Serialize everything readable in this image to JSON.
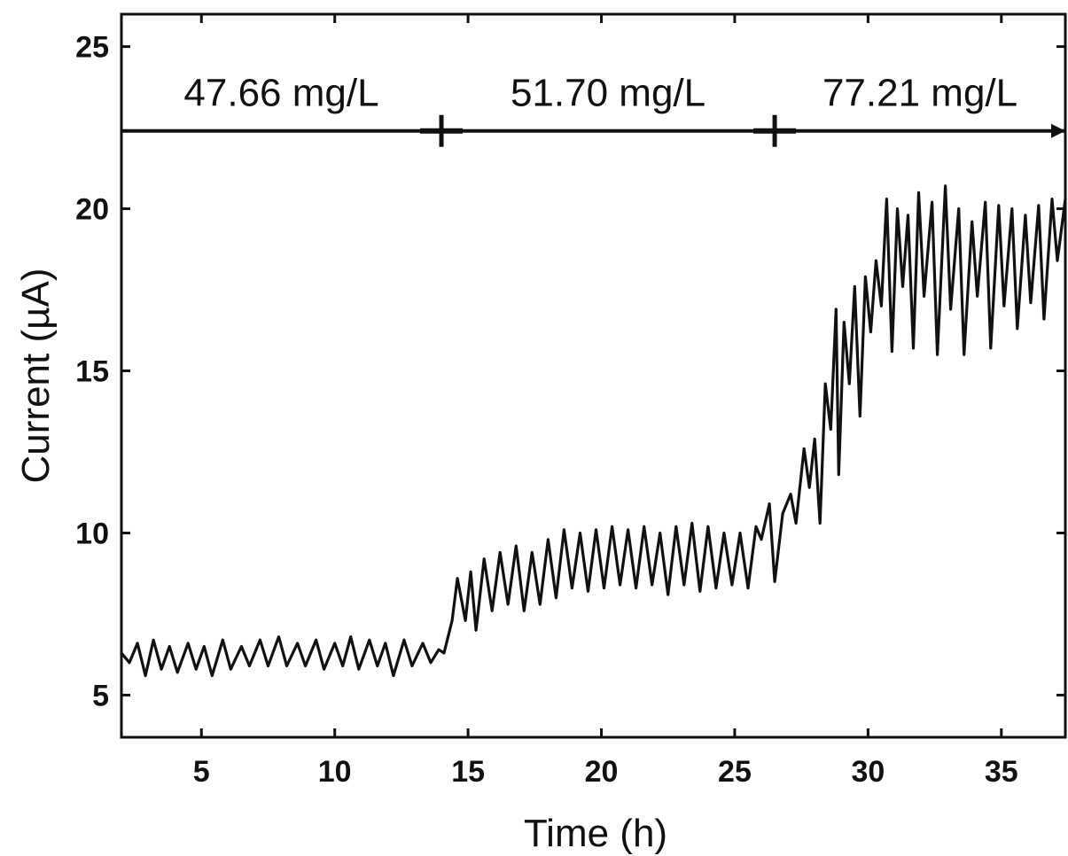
{
  "chart_data": {
    "type": "line",
    "title": "",
    "xlabel": "Time (h)",
    "ylabel": "Current (µA)",
    "xlim": [
      2,
      37.4
    ],
    "ylim": [
      3.7,
      26
    ],
    "xticks": [
      5,
      10,
      15,
      20,
      25,
      30,
      35
    ],
    "yticks": [
      5,
      10,
      15,
      20,
      25
    ],
    "grid": false,
    "legend": "none",
    "line_color": "#111111",
    "concentration_segments": [
      {
        "label": "47.66 mg/L",
        "x_start": 2,
        "x_end": 14.0
      },
      {
        "label": "51.70 mg/L",
        "x_start": 14.0,
        "x_end": 26.5
      },
      {
        "label": "77.21 mg/L",
        "x_start": 26.5,
        "x_end": 37.4
      }
    ],
    "segment_line_y": 22.4,
    "series": [
      {
        "points": [
          [
            2.0,
            6.3
          ],
          [
            2.3,
            6.0
          ],
          [
            2.6,
            6.6
          ],
          [
            2.9,
            5.6
          ],
          [
            3.2,
            6.7
          ],
          [
            3.5,
            5.8
          ],
          [
            3.8,
            6.5
          ],
          [
            4.1,
            5.7
          ],
          [
            4.5,
            6.6
          ],
          [
            4.8,
            5.8
          ],
          [
            5.1,
            6.5
          ],
          [
            5.4,
            5.6
          ],
          [
            5.8,
            6.7
          ],
          [
            6.1,
            5.8
          ],
          [
            6.5,
            6.5
          ],
          [
            6.8,
            5.9
          ],
          [
            7.2,
            6.7
          ],
          [
            7.5,
            5.9
          ],
          [
            7.9,
            6.8
          ],
          [
            8.2,
            5.9
          ],
          [
            8.6,
            6.6
          ],
          [
            8.9,
            5.9
          ],
          [
            9.3,
            6.7
          ],
          [
            9.6,
            5.8
          ],
          [
            10.0,
            6.6
          ],
          [
            10.3,
            5.9
          ],
          [
            10.6,
            6.8
          ],
          [
            10.9,
            5.8
          ],
          [
            11.3,
            6.7
          ],
          [
            11.6,
            5.9
          ],
          [
            11.9,
            6.6
          ],
          [
            12.2,
            5.6
          ],
          [
            12.6,
            6.7
          ],
          [
            12.9,
            5.9
          ],
          [
            13.3,
            6.6
          ],
          [
            13.6,
            6.0
          ],
          [
            13.9,
            6.4
          ],
          [
            14.1,
            6.3
          ],
          [
            14.4,
            7.3
          ],
          [
            14.6,
            8.6
          ],
          [
            14.9,
            7.3
          ],
          [
            15.1,
            8.8
          ],
          [
            15.3,
            7.0
          ],
          [
            15.6,
            9.2
          ],
          [
            15.9,
            7.6
          ],
          [
            16.2,
            9.4
          ],
          [
            16.5,
            7.8
          ],
          [
            16.8,
            9.6
          ],
          [
            17.1,
            7.6
          ],
          [
            17.4,
            9.4
          ],
          [
            17.7,
            7.8
          ],
          [
            18.0,
            9.8
          ],
          [
            18.3,
            8.0
          ],
          [
            18.6,
            10.1
          ],
          [
            18.9,
            8.3
          ],
          [
            19.2,
            10.0
          ],
          [
            19.5,
            8.2
          ],
          [
            19.8,
            10.1
          ],
          [
            20.1,
            8.3
          ],
          [
            20.4,
            10.2
          ],
          [
            20.7,
            8.4
          ],
          [
            21.0,
            10.1
          ],
          [
            21.3,
            8.3
          ],
          [
            21.6,
            10.2
          ],
          [
            21.9,
            8.4
          ],
          [
            22.2,
            10.0
          ],
          [
            22.5,
            8.1
          ],
          [
            22.8,
            10.2
          ],
          [
            23.1,
            8.4
          ],
          [
            23.4,
            10.3
          ],
          [
            23.7,
            8.2
          ],
          [
            24.0,
            10.2
          ],
          [
            24.3,
            8.3
          ],
          [
            24.6,
            10.0
          ],
          [
            24.9,
            8.4
          ],
          [
            25.2,
            10.0
          ],
          [
            25.5,
            8.3
          ],
          [
            25.8,
            10.2
          ],
          [
            26.0,
            9.8
          ],
          [
            26.3,
            10.9
          ],
          [
            26.5,
            8.5
          ],
          [
            26.8,
            10.6
          ],
          [
            27.1,
            11.2
          ],
          [
            27.3,
            10.3
          ],
          [
            27.6,
            12.6
          ],
          [
            27.8,
            11.4
          ],
          [
            28.0,
            12.9
          ],
          [
            28.2,
            10.3
          ],
          [
            28.4,
            14.6
          ],
          [
            28.6,
            13.2
          ],
          [
            28.8,
            16.9
          ],
          [
            28.9,
            11.8
          ],
          [
            29.1,
            16.5
          ],
          [
            29.3,
            14.6
          ],
          [
            29.5,
            17.6
          ],
          [
            29.7,
            13.6
          ],
          [
            29.9,
            17.9
          ],
          [
            30.1,
            16.2
          ],
          [
            30.3,
            18.4
          ],
          [
            30.5,
            17.0
          ],
          [
            30.7,
            20.3
          ],
          [
            30.9,
            15.6
          ],
          [
            31.1,
            20.0
          ],
          [
            31.3,
            17.6
          ],
          [
            31.5,
            19.8
          ],
          [
            31.7,
            15.7
          ],
          [
            31.9,
            20.5
          ],
          [
            32.1,
            17.3
          ],
          [
            32.4,
            20.2
          ],
          [
            32.6,
            15.5
          ],
          [
            32.9,
            20.7
          ],
          [
            33.1,
            16.9
          ],
          [
            33.4,
            20.0
          ],
          [
            33.6,
            15.5
          ],
          [
            33.9,
            19.6
          ],
          [
            34.1,
            17.3
          ],
          [
            34.4,
            20.2
          ],
          [
            34.6,
            15.7
          ],
          [
            34.9,
            20.1
          ],
          [
            35.1,
            17.0
          ],
          [
            35.4,
            20.0
          ],
          [
            35.6,
            16.3
          ],
          [
            35.9,
            19.8
          ],
          [
            36.1,
            17.1
          ],
          [
            36.4,
            20.1
          ],
          [
            36.6,
            16.6
          ],
          [
            36.9,
            20.3
          ],
          [
            37.1,
            18.4
          ],
          [
            37.4,
            20.3
          ]
        ]
      }
    ]
  }
}
